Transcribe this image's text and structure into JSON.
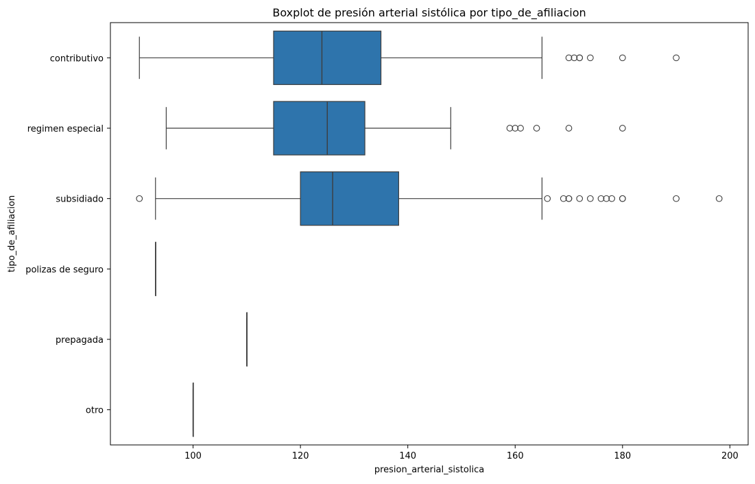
{
  "chart_data": {
    "type": "boxplot",
    "orientation": "horizontal",
    "title": "Boxplot de presión arterial sistólica por tipo_de_afiliacion",
    "xlabel": "presion_arterial_sistolica",
    "ylabel": "tipo_de_afiliacion",
    "xlim": [
      84.6,
      203.4
    ],
    "x_ticks": [
      100,
      120,
      140,
      160,
      180,
      200
    ],
    "grid": false,
    "box_color": "#2e74ac",
    "line_color": "#3d3d3d",
    "categories": [
      "contributivo",
      "regimen especial",
      "subsidiado",
      "polizas de seguro",
      "prepagada",
      "otro"
    ],
    "boxes": [
      {
        "category": "contributivo",
        "whisker_low": 90,
        "q1": 115,
        "median": 124,
        "q3": 135,
        "whisker_high": 165,
        "outliers": [
          170,
          171,
          172,
          172,
          174,
          180,
          190
        ]
      },
      {
        "category": "regimen especial",
        "whisker_low": 95,
        "q1": 115,
        "median": 125,
        "q3": 132,
        "whisker_high": 148,
        "outliers": [
          159,
          160,
          161,
          164,
          170,
          180
        ]
      },
      {
        "category": "subsidiado",
        "whisker_low": 93,
        "q1": 120,
        "median": 126,
        "q3": 138.3,
        "whisker_high": 165,
        "outliers": [
          90,
          166,
          169,
          170,
          170,
          172,
          174,
          176,
          177,
          178,
          180,
          180,
          190,
          198
        ]
      },
      {
        "category": "polizas de seguro",
        "whisker_low": 93,
        "q1": 93,
        "median": 93,
        "q3": 93,
        "whisker_high": 93,
        "outliers": []
      },
      {
        "category": "prepagada",
        "whisker_low": 110,
        "q1": 110,
        "median": 110,
        "q3": 110,
        "whisker_high": 110,
        "outliers": []
      },
      {
        "category": "otro",
        "whisker_low": 100,
        "q1": 100,
        "median": 100,
        "q3": 100,
        "whisker_high": 100,
        "outliers": []
      }
    ]
  }
}
